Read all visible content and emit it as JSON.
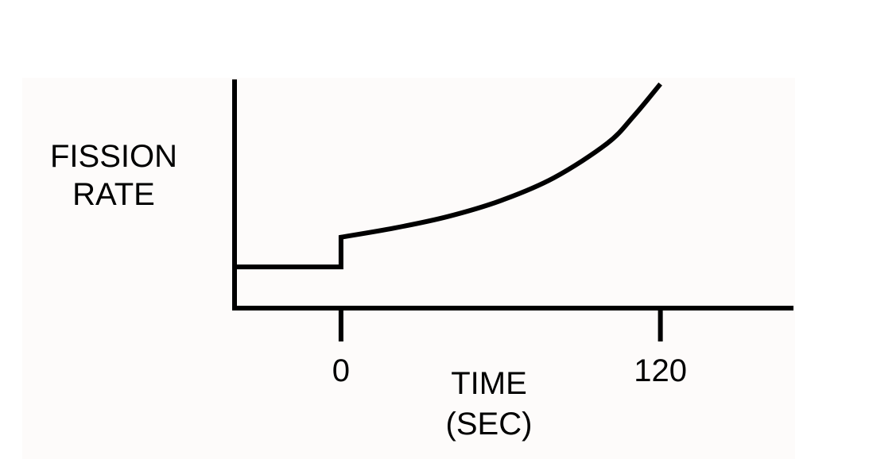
{
  "chart_data": {
    "type": "line",
    "ylabel": [
      "FISSION",
      "RATE"
    ],
    "xlabel": [
      "TIME",
      "(SEC)"
    ],
    "x_ticks": [
      0,
      120
    ],
    "x_tick_labels": [
      "0",
      "120"
    ],
    "xlim": [
      -40,
      170
    ],
    "ylim": [
      0,
      100
    ],
    "grid": false,
    "legend": "none",
    "series": [
      {
        "x": [
          -40,
          0,
          0,
          20,
          40,
          60,
          80,
          100,
          110,
          120
        ],
        "y": [
          18,
          18,
          31,
          35,
          40,
          47,
          57,
          72,
          84,
          98
        ]
      }
    ],
    "colors": {
      "line": "#000000",
      "axis": "#000000",
      "panel_background": "#fdfbfa",
      "page_background": "#ffffff"
    }
  }
}
